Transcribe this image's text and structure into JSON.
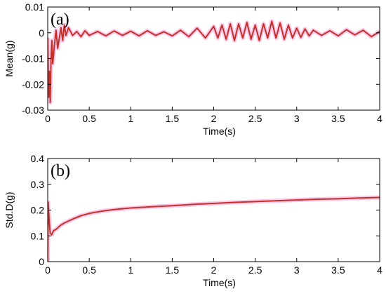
{
  "chart_data": [
    {
      "type": "line",
      "panel_label": "(a)",
      "xlabel": "Time(s)",
      "ylabel": "Mean(g)",
      "xlim": [
        0,
        4
      ],
      "ylim": [
        -0.03,
        0.01
      ],
      "xticks": [
        "0",
        "0.5",
        "1",
        "1.5",
        "2",
        "2.5",
        "3",
        "3.5",
        "4"
      ],
      "yticks": [
        "-0.03",
        "-0.02",
        "-0.01",
        "0",
        "0.01"
      ],
      "grid": false,
      "line_color": "#c0322a",
      "band_color": "#ff9ad6",
      "series": [
        {
          "x": [
            0,
            0.01,
            0.02,
            0.03,
            0.04,
            0.05,
            0.06,
            0.08,
            0.1,
            0.12,
            0.14,
            0.16,
            0.18,
            0.2,
            0.22,
            0.25,
            0.3,
            0.35,
            0.4,
            0.45,
            0.5,
            0.6,
            0.7,
            0.8,
            0.9,
            1.0,
            1.1,
            1.2,
            1.3,
            1.4,
            1.5,
            1.6,
            1.7,
            1.8,
            1.9,
            2.0,
            2.05,
            2.1,
            2.15,
            2.2,
            2.25,
            2.3,
            2.35,
            2.4,
            2.45,
            2.5,
            2.55,
            2.6,
            2.65,
            2.7,
            2.75,
            2.8,
            2.85,
            2.9,
            2.95,
            3.0,
            3.05,
            3.1,
            3.15,
            3.2,
            3.3,
            3.4,
            3.5,
            3.6,
            3.7,
            3.8,
            3.9,
            4.0
          ],
          "y": [
            -0.002,
            -0.025,
            -0.015,
            -0.027,
            -0.01,
            -0.003,
            -0.012,
            -0.005,
            0.001,
            -0.006,
            -0.002,
            0.002,
            -0.003,
            0.003,
            -0.001,
            0.002,
            -0.001,
            0.0005,
            -0.0015,
            0.0008,
            -0.001,
            0.0005,
            -0.0012,
            0.0007,
            -0.001,
            0.0006,
            -0.0012,
            0.0008,
            -0.001,
            0.0004,
            -0.0012,
            0.001,
            -0.0015,
            0.0018,
            -0.002,
            0.0025,
            -0.002,
            0.003,
            -0.0025,
            0.0035,
            -0.003,
            0.0035,
            -0.002,
            0.004,
            -0.0025,
            0.003,
            -0.003,
            0.0035,
            -0.002,
            0.0045,
            -0.002,
            0.0038,
            -0.0025,
            0.003,
            -0.002,
            0.0018,
            -0.0018,
            0.0015,
            -0.0012,
            0.001,
            -0.001,
            0.0008,
            -0.0012,
            0.0012,
            -0.0008,
            0.001,
            -0.0015,
            0.0005
          ]
        }
      ]
    },
    {
      "type": "line",
      "panel_label": "(b)",
      "xlabel": "Time(s)",
      "ylabel": "Std.D(g)",
      "xlim": [
        0,
        4
      ],
      "ylim": [
        0,
        0.4
      ],
      "xticks": [
        "0",
        "0.5",
        "1",
        "1.5",
        "2",
        "2.5",
        "3",
        "3.5",
        "4"
      ],
      "yticks": [
        "0",
        "0.1",
        "0.2",
        "0.3",
        "0.4"
      ],
      "grid": false,
      "line_color": "#c0322a",
      "band_color": "#ff9ad6",
      "series": [
        {
          "x": [
            0,
            0.005,
            0.01,
            0.02,
            0.03,
            0.05,
            0.07,
            0.1,
            0.15,
            0.2,
            0.3,
            0.4,
            0.5,
            0.6,
            0.7,
            0.8,
            0.9,
            1.0,
            1.25,
            1.5,
            1.75,
            2.0,
            2.25,
            2.5,
            2.75,
            3.0,
            3.25,
            3.5,
            3.75,
            4.0
          ],
          "y": [
            0.0,
            0.23,
            0.2,
            0.15,
            0.11,
            0.105,
            0.12,
            0.125,
            0.14,
            0.15,
            0.165,
            0.178,
            0.187,
            0.193,
            0.198,
            0.202,
            0.205,
            0.208,
            0.213,
            0.217,
            0.222,
            0.226,
            0.23,
            0.233,
            0.236,
            0.239,
            0.242,
            0.244,
            0.247,
            0.249
          ]
        }
      ]
    }
  ]
}
